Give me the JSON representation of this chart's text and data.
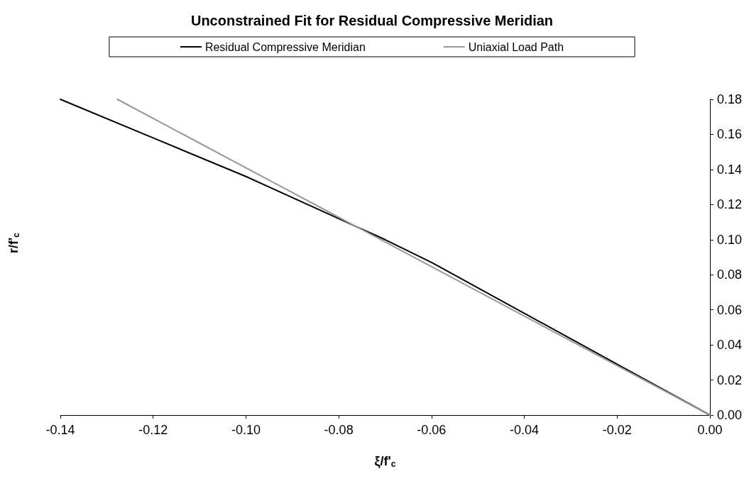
{
  "chart_data": {
    "type": "line",
    "title": "Unconstrained Fit for Residual Compressive Meridian",
    "xlabel": "ξ/f'$_{c}$",
    "ylabel": "r/f'$_{c}$",
    "series": [
      {
        "name": "Residual Compressive Meridian",
        "color": "#000000",
        "x": [
          -0.14,
          -0.12,
          -0.1,
          -0.08,
          -0.07,
          -0.06,
          -0.04,
          -0.02,
          0
        ],
        "values": [
          0.18,
          0.158,
          0.136,
          0.112,
          0.1,
          0.087,
          0.058,
          0.029,
          0
        ]
      },
      {
        "name": "Uniaxial Load Path",
        "color": "#999999",
        "x": [
          -0.1277,
          0
        ],
        "values": [
          0.18,
          0
        ]
      }
    ],
    "xlim": [
      -0.14,
      0
    ],
    "xticks": [
      -0.14,
      -0.12,
      {
        "value": -0.1,
        "label": "-0.10"
      },
      -0.08,
      -0.06,
      -0.04,
      -0.02,
      {
        "value": 0,
        "label": "0.00"
      }
    ],
    "ylim": [
      0,
      0.18
    ],
    "yticks": [
      {
        "value": 0,
        "label": "0.00"
      },
      0.02,
      0.04,
      0.06,
      0.08,
      {
        "value": 0.1,
        "label": "0.10"
      },
      0.12,
      0.14,
      0.16,
      0.18
    ],
    "grid": false,
    "legend": "top",
    "marker": "none",
    "line_style": "solid"
  }
}
